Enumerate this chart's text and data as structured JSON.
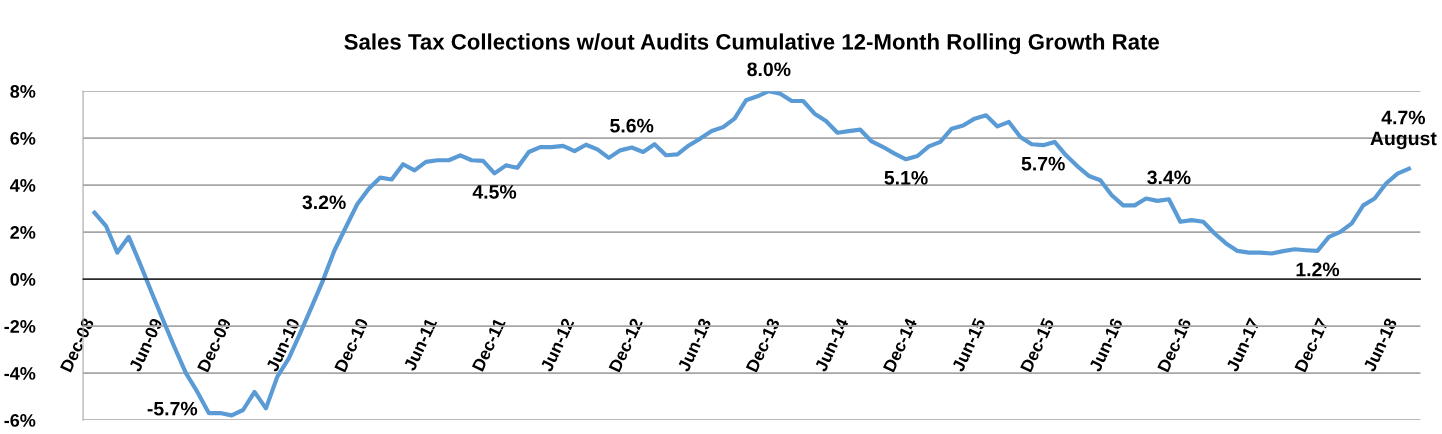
{
  "chart_data": {
    "type": "line",
    "title": "Sales Tax Collections w/out Audits Cumulative 12-Month Rolling Growth Rate",
    "x": [
      "2009-01",
      "2009-02",
      "2009-03",
      "2009-04",
      "2009-05",
      "2009-06",
      "2009-07",
      "2009-08",
      "2009-09",
      "2009-10",
      "2009-11",
      "2009-12",
      "2010-01",
      "2010-02",
      "2010-03",
      "2010-04",
      "2010-05",
      "2010-06",
      "2010-07",
      "2010-08",
      "2010-09",
      "2010-10",
      "2010-11",
      "2010-12",
      "2011-01",
      "2011-02",
      "2011-03",
      "2011-04",
      "2011-05",
      "2011-06",
      "2011-07",
      "2011-08",
      "2011-09",
      "2011-10",
      "2011-11",
      "2011-12",
      "2012-01",
      "2012-02",
      "2012-03",
      "2012-04",
      "2012-05",
      "2012-06",
      "2012-07",
      "2012-08",
      "2012-09",
      "2012-10",
      "2012-11",
      "2012-12",
      "2013-01",
      "2013-02",
      "2013-03",
      "2013-04",
      "2013-05",
      "2013-06",
      "2013-07",
      "2013-08",
      "2013-09",
      "2013-10",
      "2013-11",
      "2013-12",
      "2014-01",
      "2014-02",
      "2014-03",
      "2014-04",
      "2014-05",
      "2014-06",
      "2014-07",
      "2014-08",
      "2014-09",
      "2014-10",
      "2014-11",
      "2014-12",
      "2015-01",
      "2015-02",
      "2015-03",
      "2015-04",
      "2015-05",
      "2015-06",
      "2015-07",
      "2015-08",
      "2015-09",
      "2015-10",
      "2015-11",
      "2015-12",
      "2016-01",
      "2016-02",
      "2016-03",
      "2016-04",
      "2016-05",
      "2016-06",
      "2016-07",
      "2016-08",
      "2016-09",
      "2016-10",
      "2016-11",
      "2016-12",
      "2017-01",
      "2017-02",
      "2017-03",
      "2017-04",
      "2017-05",
      "2017-06",
      "2017-07",
      "2017-08",
      "2017-09",
      "2017-10",
      "2017-11",
      "2017-12",
      "2018-01",
      "2018-02",
      "2018-03",
      "2018-04",
      "2018-05",
      "2018-06",
      "2018-07",
      "2018-08"
    ],
    "series": [
      {
        "color": "#5b9bd5",
        "values": [
          2.83,
          2.27,
          1.13,
          1.8,
          0.64,
          -0.57,
          -1.74,
          -2.9,
          -4.0,
          -4.8,
          -5.7,
          -5.7,
          -5.8,
          -5.57,
          -4.8,
          -5.5,
          -4.15,
          -3.37,
          -2.3,
          -1.18,
          -0.04,
          1.23,
          2.22,
          3.2,
          3.85,
          4.32,
          4.24,
          4.89,
          4.63,
          4.99,
          5.06,
          5.06,
          5.27,
          5.06,
          5.03,
          4.5,
          4.84,
          4.74,
          5.41,
          5.62,
          5.62,
          5.67,
          5.45,
          5.72,
          5.52,
          5.16,
          5.48,
          5.6,
          5.41,
          5.74,
          5.27,
          5.31,
          5.69,
          5.98,
          6.3,
          6.47,
          6.83,
          7.61,
          7.78,
          8.0,
          7.89,
          7.58,
          7.58,
          7.04,
          6.73,
          6.23,
          6.3,
          6.36,
          5.86,
          5.62,
          5.34,
          5.1,
          5.24,
          5.65,
          5.84,
          6.4,
          6.54,
          6.83,
          6.97,
          6.5,
          6.69,
          6.05,
          5.74,
          5.7,
          5.84,
          5.27,
          4.8,
          4.39,
          4.21,
          3.57,
          3.14,
          3.14,
          3.43,
          3.33,
          3.4,
          2.44,
          2.51,
          2.44,
          1.94,
          1.52,
          1.2,
          1.13,
          1.13,
          1.09,
          1.19,
          1.27,
          1.23,
          1.2,
          1.8,
          2.01,
          2.37,
          3.14,
          3.43,
          4.07,
          4.49,
          4.7
        ]
      }
    ],
    "xlim": [
      "2008-12",
      "2018-09"
    ],
    "xticks": [
      {
        "value": "2008-12",
        "label": "Dec-08"
      },
      {
        "value": "2009-06",
        "label": "Jun-09"
      },
      {
        "value": "2009-12",
        "label": "Dec-09"
      },
      {
        "value": "2010-06",
        "label": "Jun-10"
      },
      {
        "value": "2010-12",
        "label": "Dec-10"
      },
      {
        "value": "2011-06",
        "label": "Jun-11"
      },
      {
        "value": "2011-12",
        "label": "Dec-11"
      },
      {
        "value": "2012-06",
        "label": "Jun-12"
      },
      {
        "value": "2012-12",
        "label": "Dec-12"
      },
      {
        "value": "2013-06",
        "label": "Jun-13"
      },
      {
        "value": "2013-12",
        "label": "Dec-13"
      },
      {
        "value": "2014-06",
        "label": "Jun-14"
      },
      {
        "value": "2014-12",
        "label": "Dec-14"
      },
      {
        "value": "2015-06",
        "label": "Jun-15"
      },
      {
        "value": "2015-12",
        "label": "Dec-15"
      },
      {
        "value": "2016-06",
        "label": "Jun-16"
      },
      {
        "value": "2016-12",
        "label": "Dec-16"
      },
      {
        "value": "2017-06",
        "label": "Jun-17"
      },
      {
        "value": "2017-12",
        "label": "Dec-17"
      },
      {
        "value": "2018-06",
        "label": "Jun-18"
      }
    ],
    "ylim": [
      -6,
      8
    ],
    "yticks": [
      {
        "value": -6,
        "label": "-6%"
      },
      {
        "value": -4,
        "label": "-4%"
      },
      {
        "value": -2,
        "label": "-2%"
      },
      {
        "value": 0,
        "label": "0%"
      },
      {
        "value": 2,
        "label": "2%"
      },
      {
        "value": 4,
        "label": "4%"
      },
      {
        "value": 6,
        "label": "6%"
      },
      {
        "value": 8,
        "label": "8%"
      }
    ],
    "grid": "y",
    "legend": false,
    "marker": "none",
    "line_style": "solid",
    "annotations": [
      {
        "text": "-5.7%",
        "x": "2009-11",
        "y": -5.7
      },
      {
        "text": "3.2%",
        "x": "2010-12",
        "y": 3.2
      },
      {
        "text": "4.5%",
        "x": "2011-12",
        "y": 4.5
      },
      {
        "text": "5.6%",
        "x": "2012-12",
        "y": 5.6
      },
      {
        "text": "8.0%",
        "x": "2013-12",
        "y": 8.0
      },
      {
        "text": "5.1%",
        "x": "2014-12",
        "y": 5.1
      },
      {
        "text": "5.7%",
        "x": "2015-12",
        "y": 5.7
      },
      {
        "text": "3.4%",
        "x": "2016-11",
        "y": 3.4
      },
      {
        "text": "1.2%",
        "x": "2017-12",
        "y": 1.2
      },
      {
        "text": "4.7%\nAugust",
        "x": "2018-08",
        "y": 4.7
      }
    ]
  }
}
